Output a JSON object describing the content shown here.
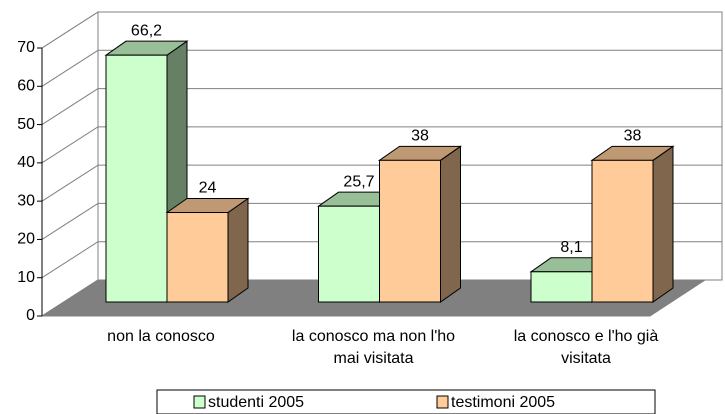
{
  "chart_data": {
    "type": "bar3d",
    "categories": [
      "non la conosco",
      "la conosco ma non l'ho mai visitata",
      "la conosco e l'ho già visitata"
    ],
    "series": [
      {
        "name": "studenti 2005",
        "color": "#ccffcc",
        "values": [
          66.2,
          25.7,
          8.1
        ],
        "value_labels": [
          "66,2",
          "25,7",
          "8,1"
        ]
      },
      {
        "name": "testimoni 2005",
        "color": "#ffcc99",
        "values": [
          24,
          38,
          38
        ]
      }
    ],
    "ylim": [
      0,
      70
    ],
    "yticks": [
      0,
      10,
      20,
      30,
      40,
      50,
      60,
      70
    ],
    "grid": true,
    "legend": "bottom"
  }
}
